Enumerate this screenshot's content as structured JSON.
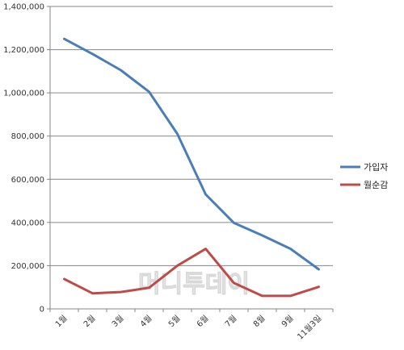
{
  "chart_data": {
    "type": "line",
    "categories": [
      "1월",
      "2월",
      "3월",
      "4월",
      "5월",
      "6월",
      "7월",
      "8월",
      "9월",
      "11월3일"
    ],
    "series": [
      {
        "name": "가입자",
        "color": "#4a7ebb",
        "values": [
          1250000,
          1180000,
          1105000,
          1005000,
          810000,
          530000,
          398000,
          340000,
          278000,
          183000
        ]
      },
      {
        "name": "월순감",
        "color": "#be4b48",
        "values": [
          138000,
          72000,
          78000,
          98000,
          200000,
          278000,
          120000,
          60000,
          60000,
          102000
        ]
      }
    ],
    "yticks": [
      "0",
      "200,000",
      "400,000",
      "600,000",
      "800,000",
      "1,000,000",
      "1,200,000",
      "1,400,000"
    ],
    "ylim": [
      0,
      1400000
    ],
    "grid": true,
    "legend_position": "right",
    "title": "",
    "xlabel": "",
    "ylabel": ""
  },
  "watermark": "머니투데이"
}
